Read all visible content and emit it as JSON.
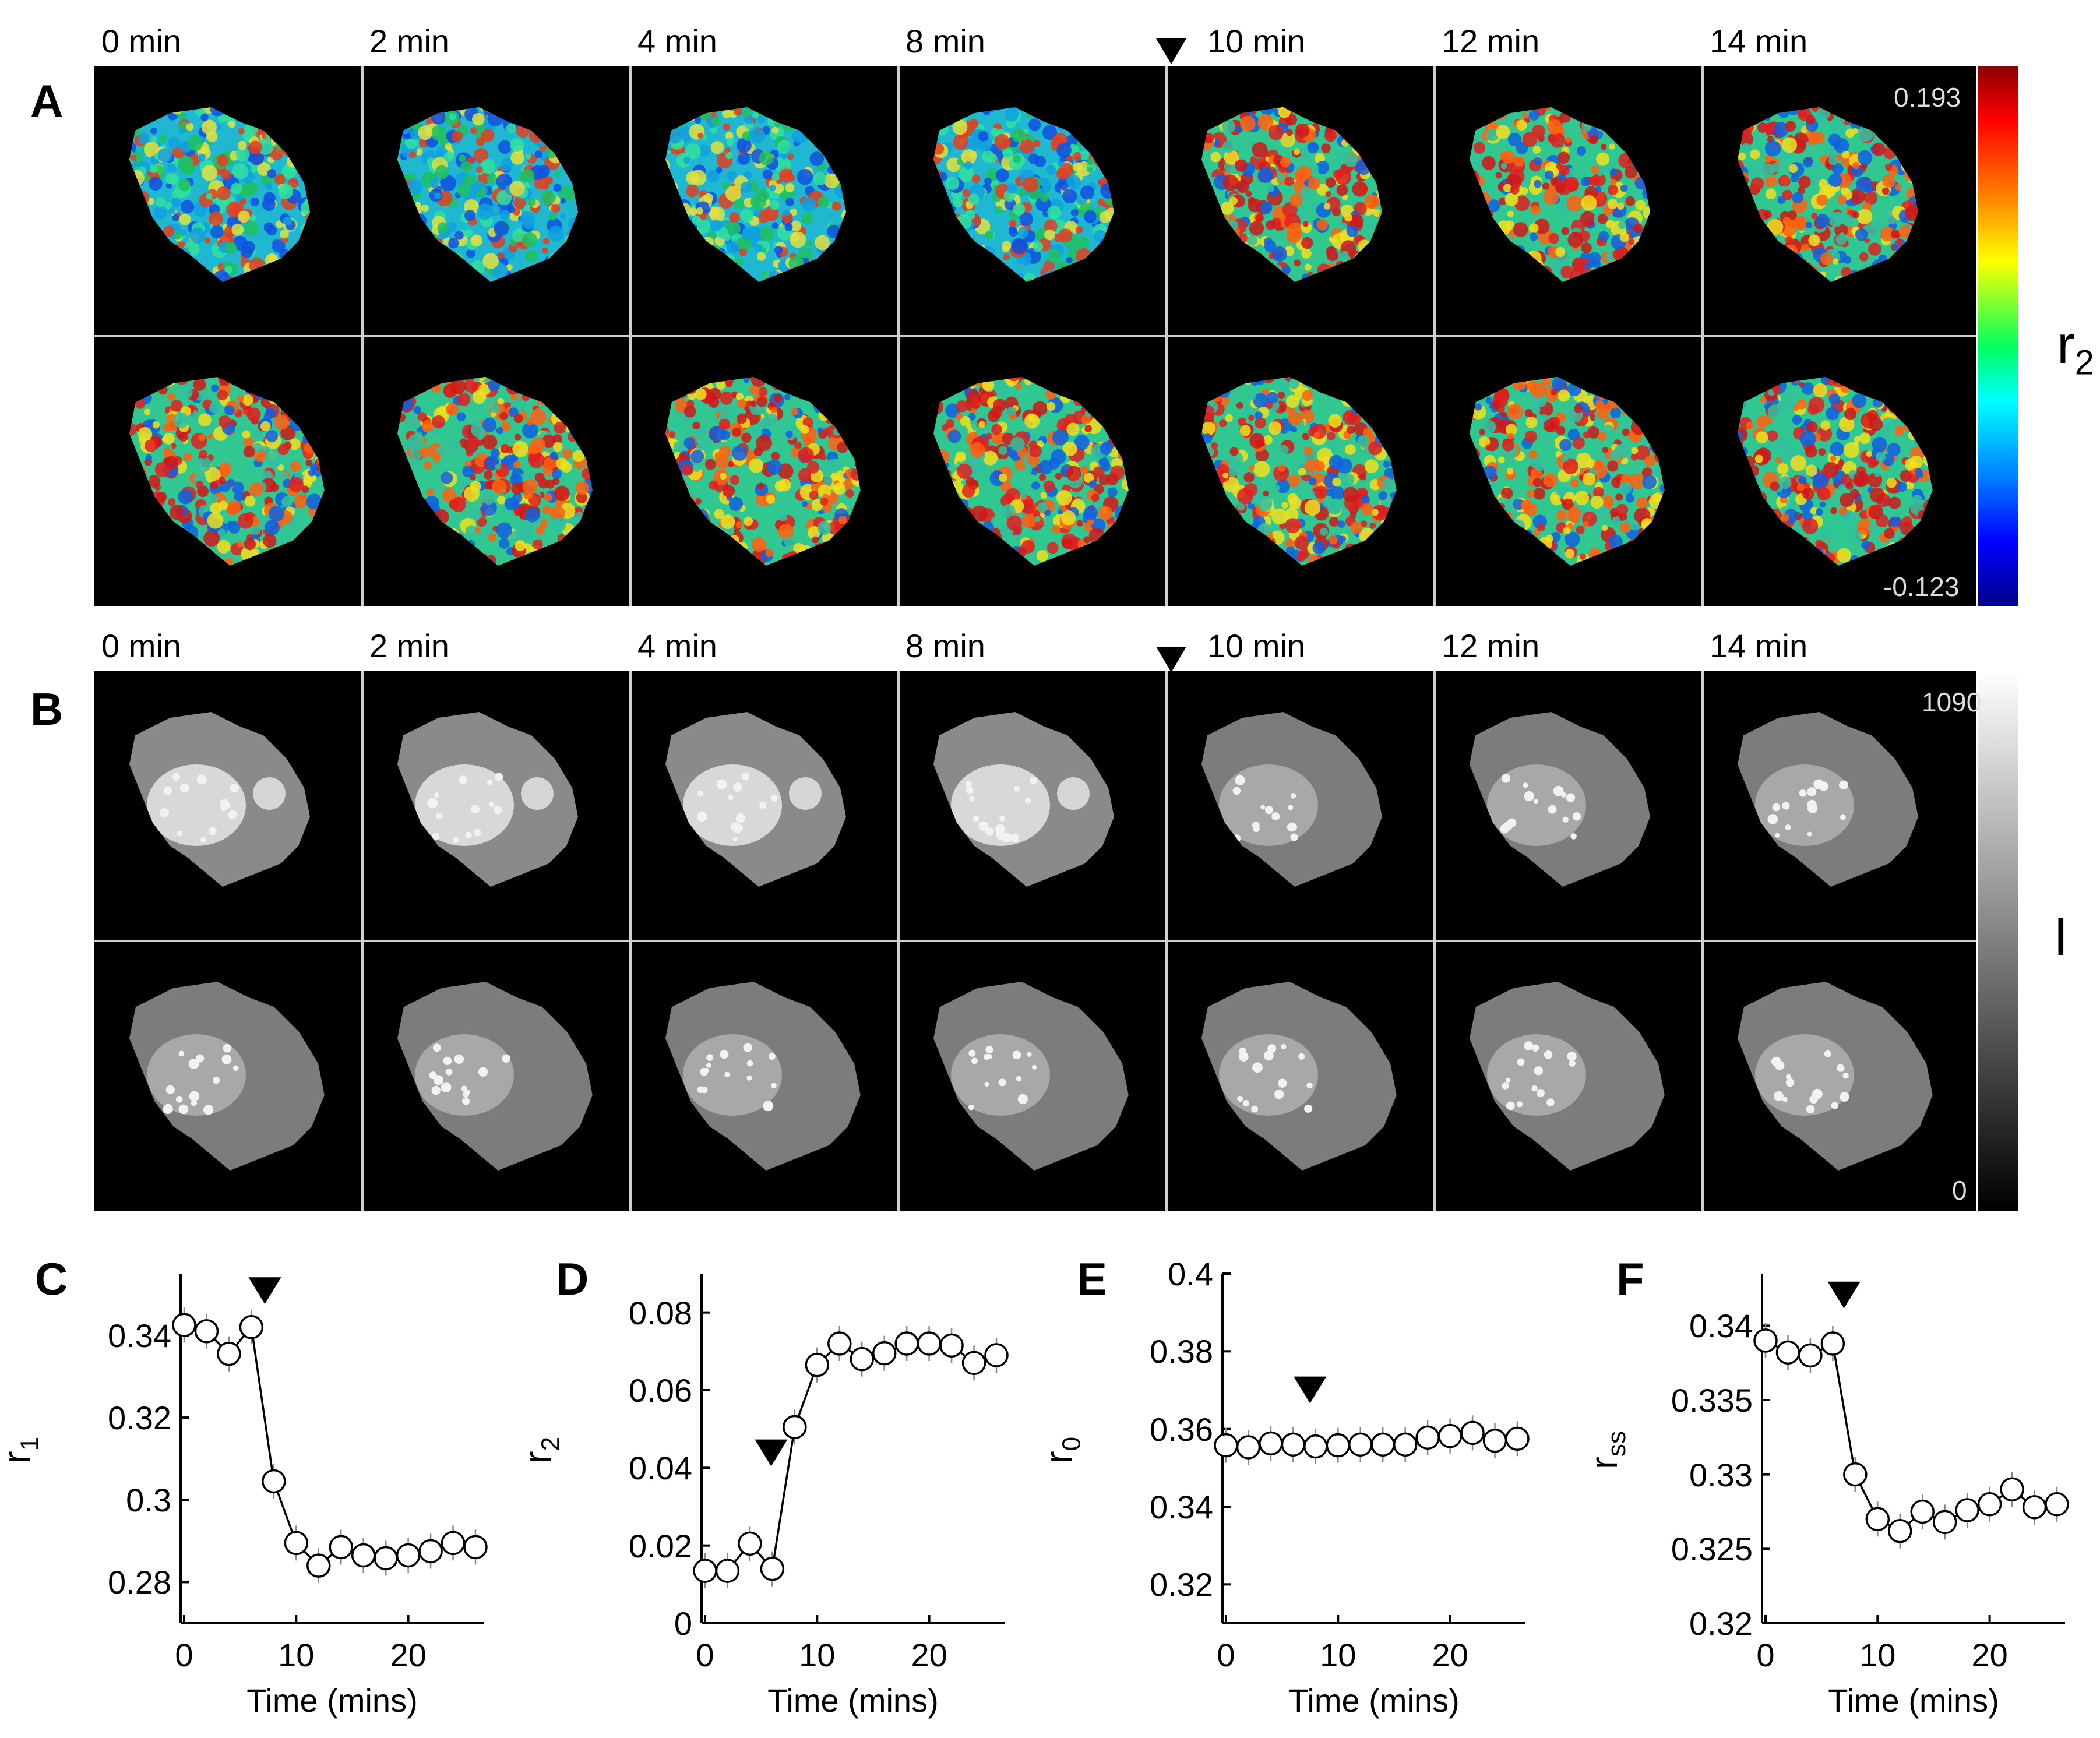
{
  "figure": {
    "panel_A": {
      "letter": "A",
      "time_labels": [
        "0 min",
        "2 min",
        "4 min",
        "8 min",
        "10 min",
        "12 min",
        "14 min"
      ],
      "colorbar": {
        "max": "0.193",
        "min": "-0.123",
        "label_main": "r",
        "label_sub": "2"
      }
    },
    "panel_B": {
      "letter": "B",
      "time_labels": [
        "0 min",
        "2 min",
        "4 min",
        "8 min",
        "10 min",
        "12 min",
        "14 min"
      ],
      "colorbar": {
        "max": "1090",
        "min": "0",
        "label": "I"
      }
    }
  },
  "chart_data": [
    {
      "id": "C",
      "type": "line",
      "letter": "C",
      "xlabel": "Time (mins)",
      "ylabel_main": "r",
      "ylabel_sub": "1",
      "x": [
        0,
        2,
        4,
        6,
        8,
        10,
        12,
        14,
        16,
        18,
        20,
        22,
        24,
        26
      ],
      "values": [
        0.3425,
        0.341,
        0.3355,
        0.342,
        0.3045,
        0.2895,
        0.284,
        0.2885,
        0.2865,
        0.2858,
        0.2865,
        0.2875,
        0.2895,
        0.2885
      ],
      "ylim": [
        0.27,
        0.355
      ],
      "xlim": [
        0,
        26
      ],
      "yticks": [
        0.28,
        0.3,
        0.32,
        0.34
      ],
      "ytick_labels": [
        "0.28",
        "0.3",
        "0.32",
        "0.34"
      ],
      "xticks": [
        0,
        10,
        20
      ],
      "xtick_labels": [
        "0",
        "10",
        "20"
      ],
      "arrow_x": 7.2,
      "arrow_y": 0.351
    },
    {
      "id": "D",
      "type": "line",
      "letter": "D",
      "xlabel": "Time (mins)",
      "ylabel_main": "r",
      "ylabel_sub": "2",
      "x": [
        0,
        2,
        4,
        6,
        8,
        10,
        12,
        14,
        16,
        18,
        20,
        22,
        24,
        26
      ],
      "values": [
        0.0135,
        0.0135,
        0.0205,
        0.014,
        0.0505,
        0.0665,
        0.072,
        0.068,
        0.0695,
        0.072,
        0.072,
        0.0715,
        0.067,
        0.069
      ],
      "ylim": [
        0,
        0.09
      ],
      "xlim": [
        0,
        26
      ],
      "yticks": [
        0,
        0.02,
        0.04,
        0.06,
        0.08
      ],
      "ytick_labels": [
        "0",
        "0.02",
        "0.04",
        "0.06",
        "0.08"
      ],
      "xticks": [
        0,
        10,
        20
      ],
      "xtick_labels": [
        "0",
        "10",
        "20"
      ],
      "arrow_x": 5.9,
      "arrow_y": 0.044
    },
    {
      "id": "E",
      "type": "line",
      "letter": "E",
      "xlabel": "Time (mins)",
      "ylabel_main": "r",
      "ylabel_sub": "0",
      "x": [
        0,
        2,
        4,
        6,
        8,
        10,
        12,
        14,
        16,
        18,
        20,
        22,
        24,
        26
      ],
      "values": [
        0.3558,
        0.3553,
        0.3563,
        0.356,
        0.3555,
        0.3558,
        0.356,
        0.356,
        0.356,
        0.3578,
        0.3582,
        0.359,
        0.357,
        0.3575
      ],
      "ylim": [
        0.31,
        0.4
      ],
      "xlim": [
        0,
        26
      ],
      "yticks": [
        0.32,
        0.34,
        0.36,
        0.38,
        0.4
      ],
      "ytick_labels": [
        "0.32",
        "0.34",
        "0.36",
        "0.38",
        "0.4"
      ],
      "xticks": [
        0,
        10,
        20
      ],
      "xtick_labels": [
        "0",
        "10",
        "20"
      ],
      "arrow_x": 7.5,
      "arrow_y": 0.3702
    },
    {
      "id": "F",
      "type": "line",
      "letter": "F",
      "xlabel": "Time (mins)",
      "ylabel_main": "r",
      "ylabel_sub": "ss",
      "x": [
        0,
        2,
        4,
        6,
        8,
        10,
        12,
        14,
        16,
        18,
        20,
        22,
        24,
        26
      ],
      "values": [
        0.339,
        0.3382,
        0.338,
        0.3388,
        0.33,
        0.327,
        0.3262,
        0.3275,
        0.3268,
        0.3276,
        0.328,
        0.329,
        0.3278,
        0.328
      ],
      "ylim": [
        0.32,
        0.3435
      ],
      "xlim": [
        0,
        26
      ],
      "yticks": [
        0.32,
        0.325,
        0.33,
        0.335,
        0.34
      ],
      "ytick_labels": [
        "0.32",
        "0.325",
        "0.33",
        "0.335",
        "0.34"
      ],
      "xticks": [
        0,
        10,
        20
      ],
      "xtick_labels": [
        "0",
        "10",
        "20"
      ],
      "arrow_x": 7.0,
      "arrow_y": 0.3421
    }
  ]
}
